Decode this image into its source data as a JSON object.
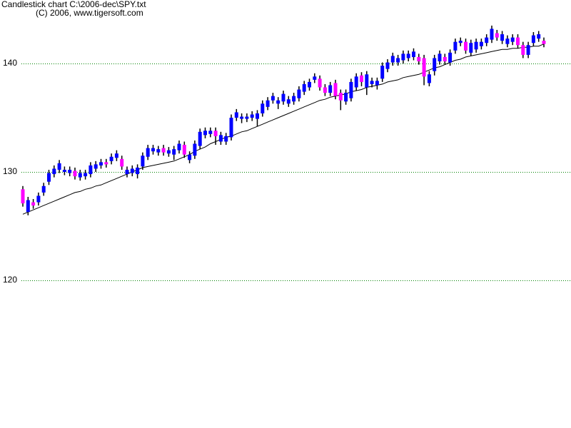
{
  "chart_data": {
    "type": "candlestick",
    "title": "Candlestick chart C:\\2006-dec\\SPY.txt",
    "subtitle": "(C) 2006, www.tigersoft.com",
    "ylim": [
      106.38,
      145.86
    ],
    "yticks": [
      120,
      130,
      140
    ],
    "grid": true,
    "grid_color": "#008000",
    "up_color": "#0000ff",
    "down_color": "#ff00ff",
    "open": [
      128.4,
      126.3,
      127.2,
      127.2,
      128.1,
      129.1,
      129.8,
      130.2,
      130.0,
      129.9,
      130.1,
      129.5,
      129.6,
      129.8,
      130.3,
      130.6,
      130.9,
      131.0,
      131.3,
      131.2,
      129.8,
      129.9,
      129.8,
      130.5,
      131.4,
      131.9,
      131.8,
      132.2,
      131.7,
      131.6,
      132.0,
      132.5,
      131.1,
      131.5,
      132.4,
      133.4,
      133.5,
      133.8,
      132.8,
      132.8,
      133.2,
      135.0,
      134.9,
      134.9,
      135.0,
      134.9,
      135.4,
      136.0,
      136.6,
      136.3,
      136.5,
      136.3,
      136.5,
      136.8,
      137.4,
      137.8,
      138.5,
      138.6,
      137.8,
      137.3,
      138.2,
      137.3,
      136.5,
      136.8,
      137.8,
      138.9,
      137.8,
      138.1,
      138.0,
      138.6,
      139.5,
      140.1,
      140.1,
      140.3,
      140.5,
      140.6,
      140.6,
      140.5,
      138.2,
      139.3,
      140.2,
      140.6,
      140.1,
      141.2,
      141.9,
      142.0,
      141.0,
      141.3,
      141.6,
      141.9,
      142.2,
      142.8,
      142.1,
      141.8,
      142.0,
      142.4,
      141.7,
      140.8,
      141.9,
      142.3,
      142.1
    ],
    "high": [
      128.7,
      127.7,
      127.5,
      128.1,
      129.0,
      130.2,
      130.6,
      131.1,
      130.5,
      130.5,
      130.4,
      130.2,
      130.2,
      130.9,
      131.0,
      131.2,
      131.2,
      131.7,
      132.0,
      131.5,
      130.5,
      130.6,
      130.7,
      131.8,
      132.5,
      132.5,
      132.4,
      132.5,
      132.3,
      132.4,
      132.9,
      132.8,
      131.9,
      132.9,
      134.0,
      134.1,
      134.1,
      134.1,
      133.7,
      133.6,
      135.3,
      135.8,
      135.4,
      135.4,
      135.6,
      135.7,
      136.6,
      136.9,
      137.3,
      136.9,
      137.5,
      137.0,
      137.3,
      137.9,
      138.4,
      138.6,
      139.1,
      138.9,
      138.1,
      138.3,
      138.5,
      137.6,
      137.6,
      138.6,
      139.1,
      139.2,
      139.3,
      138.7,
      138.7,
      140.1,
      140.4,
      141.0,
      140.8,
      141.2,
      141.2,
      141.4,
      140.9,
      140.8,
      139.3,
      140.8,
      141.2,
      140.9,
      141.3,
      142.3,
      142.4,
      142.3,
      142.2,
      142.3,
      142.3,
      142.7,
      143.5,
      143.1,
      143.0,
      142.6,
      142.7,
      142.7,
      142.0,
      142.0,
      142.9,
      143.0,
      142.4
    ],
    "low": [
      126.8,
      126.0,
      126.6,
      126.9,
      127.8,
      128.8,
      129.5,
      129.9,
      129.7,
      129.6,
      129.3,
      129.2,
      129.3,
      129.5,
      130.0,
      130.3,
      130.4,
      130.7,
      131.0,
      130.2,
      129.5,
      129.6,
      129.4,
      130.2,
      131.1,
      131.6,
      131.5,
      131.5,
      131.4,
      131.1,
      131.7,
      131.3,
      130.8,
      131.2,
      132.1,
      133.1,
      133.2,
      132.5,
      132.5,
      132.5,
      132.9,
      134.7,
      134.5,
      134.6,
      134.7,
      134.2,
      135.1,
      135.7,
      136.3,
      135.8,
      136.2,
      136.0,
      136.2,
      136.5,
      137.1,
      137.5,
      138.2,
      137.5,
      137.0,
      137.0,
      136.7,
      135.7,
      136.2,
      136.5,
      137.5,
      137.9,
      137.1,
      137.8,
      137.6,
      138.3,
      139.2,
      139.8,
      139.8,
      140.0,
      140.2,
      140.3,
      139.9,
      138.0,
      137.9,
      138.9,
      139.9,
      139.9,
      139.8,
      140.9,
      141.6,
      140.9,
      140.7,
      141.0,
      141.3,
      141.6,
      141.9,
      142.1,
      141.8,
      141.5,
      141.7,
      141.4,
      140.5,
      140.5,
      141.6,
      142.0,
      141.5
    ],
    "close": [
      127.1,
      127.4,
      126.9,
      127.8,
      128.7,
      129.9,
      130.3,
      130.8,
      130.2,
      130.2,
      129.6,
      129.9,
      129.9,
      130.6,
      130.7,
      130.9,
      130.7,
      131.4,
      131.7,
      130.5,
      130.2,
      130.3,
      130.4,
      131.5,
      132.2,
      132.2,
      132.1,
      131.8,
      132.0,
      132.1,
      132.6,
      131.6,
      131.6,
      132.6,
      133.7,
      133.8,
      133.8,
      133.3,
      133.4,
      133.3,
      135.0,
      135.5,
      135.1,
      135.1,
      135.3,
      135.4,
      136.3,
      136.6,
      137.0,
      136.6,
      137.2,
      136.7,
      137.0,
      137.6,
      138.1,
      138.3,
      138.8,
      137.8,
      137.3,
      138.0,
      137.0,
      136.6,
      137.3,
      138.3,
      138.8,
      138.3,
      139.0,
      138.4,
      138.4,
      139.8,
      140.1,
      140.7,
      140.5,
      140.9,
      140.9,
      141.1,
      140.2,
      138.8,
      139.0,
      140.5,
      140.9,
      140.2,
      141.0,
      142.0,
      142.1,
      141.2,
      141.9,
      142.0,
      142.0,
      142.4,
      143.2,
      142.4,
      142.7,
      142.3,
      142.4,
      141.7,
      140.8,
      141.7,
      142.6,
      142.7,
      141.8
    ],
    "ma": {
      "color": "#000000",
      "values": [
        126.1,
        126.3,
        126.5,
        126.7,
        126.9,
        127.1,
        127.3,
        127.5,
        127.7,
        127.9,
        128.1,
        128.2,
        128.4,
        128.5,
        128.7,
        128.8,
        129.0,
        129.2,
        129.4,
        129.6,
        129.8,
        130.0,
        130.2,
        130.4,
        130.5,
        130.6,
        130.7,
        130.8,
        130.9,
        131.0,
        131.2,
        131.4,
        131.6,
        131.9,
        132.1,
        132.3,
        132.6,
        132.8,
        133.0,
        133.2,
        133.3,
        133.5,
        133.7,
        133.8,
        134.0,
        134.2,
        134.4,
        134.6,
        134.8,
        135.0,
        135.2,
        135.4,
        135.6,
        135.8,
        136.0,
        136.2,
        136.4,
        136.6,
        136.7,
        136.9,
        137.0,
        137.1,
        137.2,
        137.4,
        137.5,
        137.6,
        137.8,
        137.9,
        138.0,
        138.1,
        138.3,
        138.4,
        138.5,
        138.7,
        138.8,
        138.9,
        139.0,
        139.2,
        139.4,
        139.6,
        139.7,
        139.9,
        140.1,
        140.3,
        140.4,
        140.6,
        140.7,
        140.8,
        140.9,
        141.0,
        141.1,
        141.2,
        141.3,
        141.3,
        141.4,
        141.4,
        141.5,
        141.5,
        141.6,
        141.6,
        141.8
      ]
    }
  }
}
